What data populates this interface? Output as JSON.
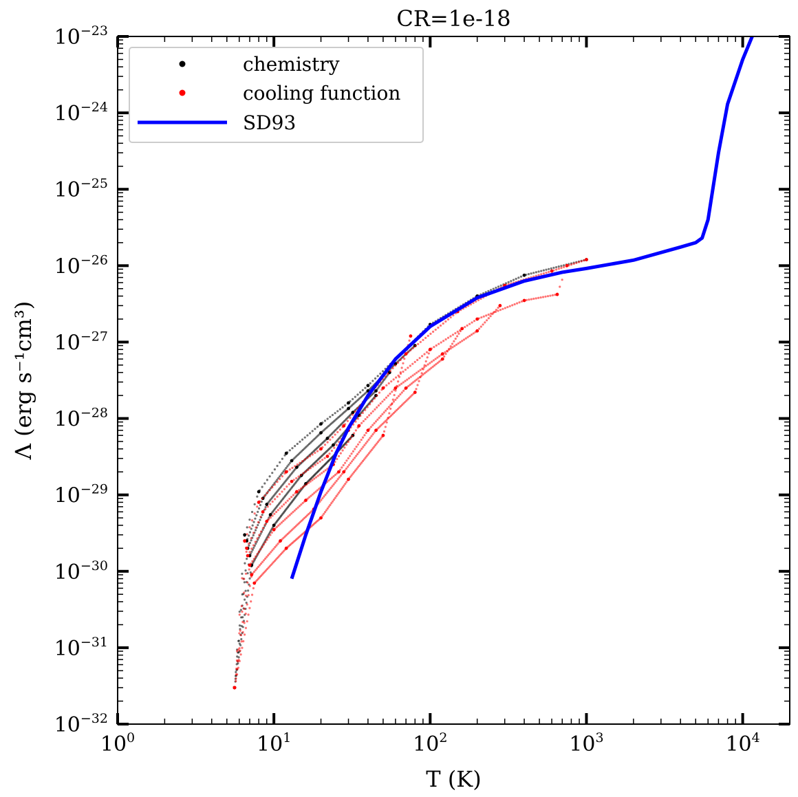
{
  "chart_data": {
    "type": "line",
    "title": "CR=1e-18",
    "xlabel": "T (K)",
    "ylabel": "Λ (erg s⁻¹cm³)",
    "xscale": "log",
    "yscale": "log",
    "xlim": [
      1,
      20000
    ],
    "ylim": [
      1e-32,
      1e-23
    ],
    "x_tick_labels": [
      "10^0",
      "10^1",
      "10^2",
      "10^3",
      "10^4"
    ],
    "y_tick_labels": [
      "10^-32",
      "10^-31",
      "10^-30",
      "10^-29",
      "10^-28",
      "10^-27",
      "10^-26",
      "10^-25",
      "10^-24",
      "10^-23"
    ],
    "legend_position": "top-left",
    "grid": false,
    "series": [
      {
        "name": "chemistry",
        "style": "points",
        "color": "#000000",
        "tracks": [
          [
            [
              5.6,
              3e-32
            ],
            [
              6.5,
              3e-30
            ],
            [
              8,
              1.1e-29
            ],
            [
              12,
              3.5e-29
            ],
            [
              20,
              8.5e-29
            ],
            [
              30,
              1.6e-28
            ],
            [
              40,
              2.7e-28
            ],
            [
              60,
              6e-28
            ],
            [
              100,
              1.7e-27
            ],
            [
              200,
              4e-27
            ],
            [
              400,
              7.5e-27
            ],
            [
              1000,
              1.2e-26
            ]
          ],
          [
            [
              5.6,
              3e-32
            ],
            [
              6.7,
              2.5e-30
            ],
            [
              8.5,
              9e-30
            ],
            [
              13,
              2.8e-29
            ],
            [
              20,
              6.5e-29
            ],
            [
              30,
              1.35e-28
            ],
            [
              40,
              2.3e-28
            ],
            [
              60,
              5.2e-28
            ],
            [
              80,
              9e-28
            ]
          ],
          [
            [
              5.6,
              3e-32
            ],
            [
              6.8,
              2e-30
            ],
            [
              9,
              7.5e-30
            ],
            [
              14,
              2.3e-29
            ],
            [
              22,
              5.5e-29
            ],
            [
              32,
              1.2e-28
            ],
            [
              45,
              2.3e-28
            ],
            [
              55,
              4e-28
            ]
          ],
          [
            [
              5.6,
              3e-32
            ],
            [
              7,
              1.6e-30
            ],
            [
              9.5,
              5.5e-30
            ],
            [
              15,
              1.8e-29
            ],
            [
              24,
              4.5e-29
            ],
            [
              35,
              1.1e-28
            ],
            [
              45,
              2e-28
            ]
          ],
          [
            [
              5.6,
              3e-32
            ],
            [
              7.2,
              1.2e-30
            ],
            [
              10,
              4e-30
            ],
            [
              16,
              1.4e-29
            ],
            [
              25,
              3.5e-29
            ],
            [
              32,
              6e-29
            ]
          ]
        ]
      },
      {
        "name": "cooling function",
        "style": "points",
        "color": "#ff0000",
        "tracks": [
          [
            [
              5.6,
              3e-32
            ],
            [
              6.5,
              2.5e-30
            ],
            [
              8,
              8e-30
            ],
            [
              12,
              2e-29
            ],
            [
              20,
              4e-29
            ],
            [
              28,
              8e-29
            ],
            [
              40,
              2e-28
            ],
            [
              70,
              7e-28
            ],
            [
              150,
              2.5e-27
            ],
            [
              300,
              5.5e-27
            ],
            [
              600,
              8.5e-27
            ],
            [
              1000,
              1.2e-26
            ]
          ],
          [
            [
              5.6,
              3e-32
            ],
            [
              6.7,
              2e-30
            ],
            [
              8.5,
              6e-30
            ],
            [
              13,
              1.5e-29
            ],
            [
              22,
              3.2e-29
            ],
            [
              30,
              7e-29
            ],
            [
              50,
              2.5e-28
            ],
            [
              100,
              8e-28
            ],
            [
              200,
              2e-27
            ],
            [
              400,
              3.5e-27
            ],
            [
              650,
              4.2e-27
            ],
            [
              750,
              1e-26
            ]
          ],
          [
            [
              5.6,
              3e-32
            ],
            [
              6.8,
              1.6e-30
            ],
            [
              9,
              4.5e-30
            ],
            [
              14,
              1.1e-29
            ],
            [
              24,
              2.5e-29
            ],
            [
              35,
              8e-29
            ],
            [
              60,
              2.5e-28
            ],
            [
              120,
              7e-28
            ],
            [
              200,
              1.4e-27
            ],
            [
              280,
              3e-27
            ]
          ],
          [
            [
              5.6,
              3e-32
            ],
            [
              7,
              1.2e-30
            ],
            [
              10,
              3.5e-30
            ],
            [
              16,
              8.5e-30
            ],
            [
              26,
              2e-29
            ],
            [
              40,
              7e-29
            ],
            [
              70,
              2.5e-28
            ],
            [
              120,
              6e-28
            ],
            [
              160,
              1.5e-27
            ]
          ],
          [
            [
              5.6,
              3e-32
            ],
            [
              7.2,
              9e-31
            ],
            [
              11,
              2.5e-30
            ],
            [
              18,
              6.5e-30
            ],
            [
              28,
              2e-29
            ],
            [
              45,
              7e-29
            ],
            [
              80,
              2.2e-28
            ],
            [
              100,
              8e-28
            ]
          ],
          [
            [
              5.6,
              3e-32
            ],
            [
              7.5,
              7e-31
            ],
            [
              12,
              2e-30
            ],
            [
              20,
              5e-30
            ],
            [
              30,
              1.6e-29
            ],
            [
              50,
              6e-29
            ],
            [
              75,
              1.2e-27
            ]
          ]
        ]
      },
      {
        "name": "SD93",
        "style": "line",
        "color": "#0000ff",
        "points": [
          [
            13,
            8e-31
          ],
          [
            16,
            3e-30
          ],
          [
            20,
            1.1e-29
          ],
          [
            25,
            3.5e-29
          ],
          [
            30,
            7.5e-29
          ],
          [
            40,
            2e-28
          ],
          [
            60,
            6e-28
          ],
          [
            100,
            1.6e-27
          ],
          [
            200,
            3.8e-27
          ],
          [
            400,
            6.3e-27
          ],
          [
            700,
            8.2e-27
          ],
          [
            1000,
            9.2e-27
          ],
          [
            2000,
            1.18e-26
          ],
          [
            4000,
            1.75e-26
          ],
          [
            5000,
            2e-26
          ],
          [
            5500,
            2.3e-26
          ],
          [
            6000,
            4e-26
          ],
          [
            7000,
            3e-25
          ],
          [
            8000,
            1.3e-24
          ],
          [
            10000,
            5e-24
          ],
          [
            11500,
            1e-23
          ]
        ]
      }
    ]
  }
}
